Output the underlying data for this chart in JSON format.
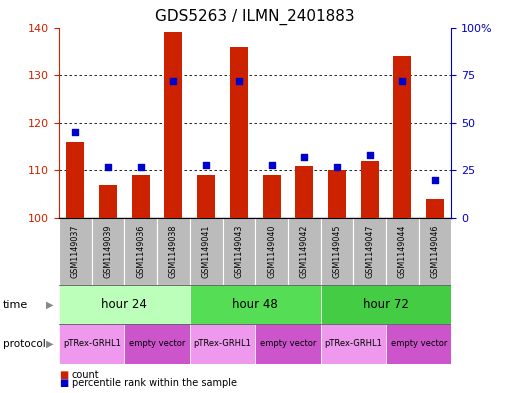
{
  "title": "GDS5263 / ILMN_2401883",
  "samples": [
    "GSM1149037",
    "GSM1149039",
    "GSM1149036",
    "GSM1149038",
    "GSM1149041",
    "GSM1149043",
    "GSM1149040",
    "GSM1149042",
    "GSM1149045",
    "GSM1149047",
    "GSM1149044",
    "GSM1149046"
  ],
  "counts": [
    116,
    107,
    109,
    139,
    109,
    136,
    109,
    111,
    110,
    112,
    134,
    104
  ],
  "percentile_ranks": [
    45,
    27,
    27,
    72,
    28,
    72,
    28,
    32,
    27,
    33,
    72,
    20
  ],
  "ylim_left": [
    100,
    140
  ],
  "ylim_right": [
    0,
    100
  ],
  "yticks_left": [
    100,
    110,
    120,
    130,
    140
  ],
  "yticks_right": [
    0,
    25,
    50,
    75,
    100
  ],
  "bar_color": "#cc2200",
  "dot_color": "#0000cc",
  "time_groups": [
    {
      "label": "hour 24",
      "start": 0,
      "end": 4,
      "color": "#bbffbb"
    },
    {
      "label": "hour 48",
      "start": 4,
      "end": 8,
      "color": "#55dd55"
    },
    {
      "label": "hour 72",
      "start": 8,
      "end": 12,
      "color": "#44cc44"
    }
  ],
  "protocol_groups": [
    {
      "label": "pTRex-GRHL1",
      "start": 0,
      "end": 2,
      "color": "#ee99ee"
    },
    {
      "label": "empty vector",
      "start": 2,
      "end": 4,
      "color": "#cc55cc"
    },
    {
      "label": "pTRex-GRHL1",
      "start": 4,
      "end": 6,
      "color": "#ee99ee"
    },
    {
      "label": "empty vector",
      "start": 6,
      "end": 8,
      "color": "#cc55cc"
    },
    {
      "label": "pTRex-GRHL1",
      "start": 8,
      "end": 10,
      "color": "#ee99ee"
    },
    {
      "label": "empty vector",
      "start": 10,
      "end": 12,
      "color": "#cc55cc"
    }
  ],
  "sample_bg_color": "#bbbbbb",
  "left_color": "#cc2200",
  "right_color": "#0000cc",
  "bar_width": 0.55,
  "title_fontsize": 11
}
